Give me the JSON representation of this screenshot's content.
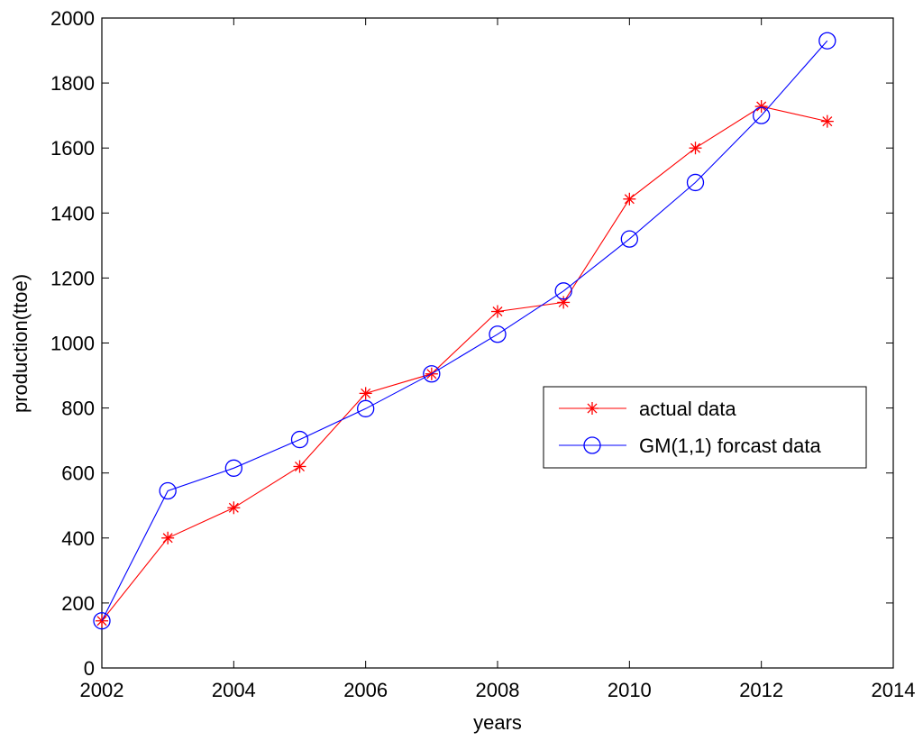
{
  "chart_data": {
    "type": "line",
    "title": "",
    "xlabel": "years",
    "ylabel": "production(ttoe)",
    "xlim": [
      2002,
      2014
    ],
    "ylim": [
      0,
      2000
    ],
    "xticks": [
      "2002",
      "2004",
      "2006",
      "2008",
      "2010",
      "2012",
      "2014"
    ],
    "yticks": [
      "0",
      "200",
      "400",
      "600",
      "800",
      "1000",
      "1200",
      "1400",
      "1600",
      "1800",
      "2000"
    ],
    "grid": false,
    "legend_position": "center-right",
    "series": [
      {
        "name": "actual data",
        "color": "#ff0000",
        "marker": "asterisk",
        "x": [
          2002,
          2003,
          2004,
          2005,
          2006,
          2007,
          2008,
          2009,
          2010,
          2011,
          2012,
          2013
        ],
        "values": [
          145,
          400,
          493,
          620,
          845,
          905,
          1097,
          1125,
          1443,
          1600,
          1728,
          1682
        ]
      },
      {
        "name": "GM(1,1) forcast data",
        "color": "#0000ff",
        "marker": "circle",
        "x": [
          2002,
          2003,
          2004,
          2005,
          2006,
          2007,
          2008,
          2009,
          2010,
          2011,
          2012,
          2013
        ],
        "values": [
          145,
          545,
          615,
          703,
          798,
          905,
          1027,
          1160,
          1320,
          1494,
          1700,
          1930
        ]
      }
    ]
  }
}
